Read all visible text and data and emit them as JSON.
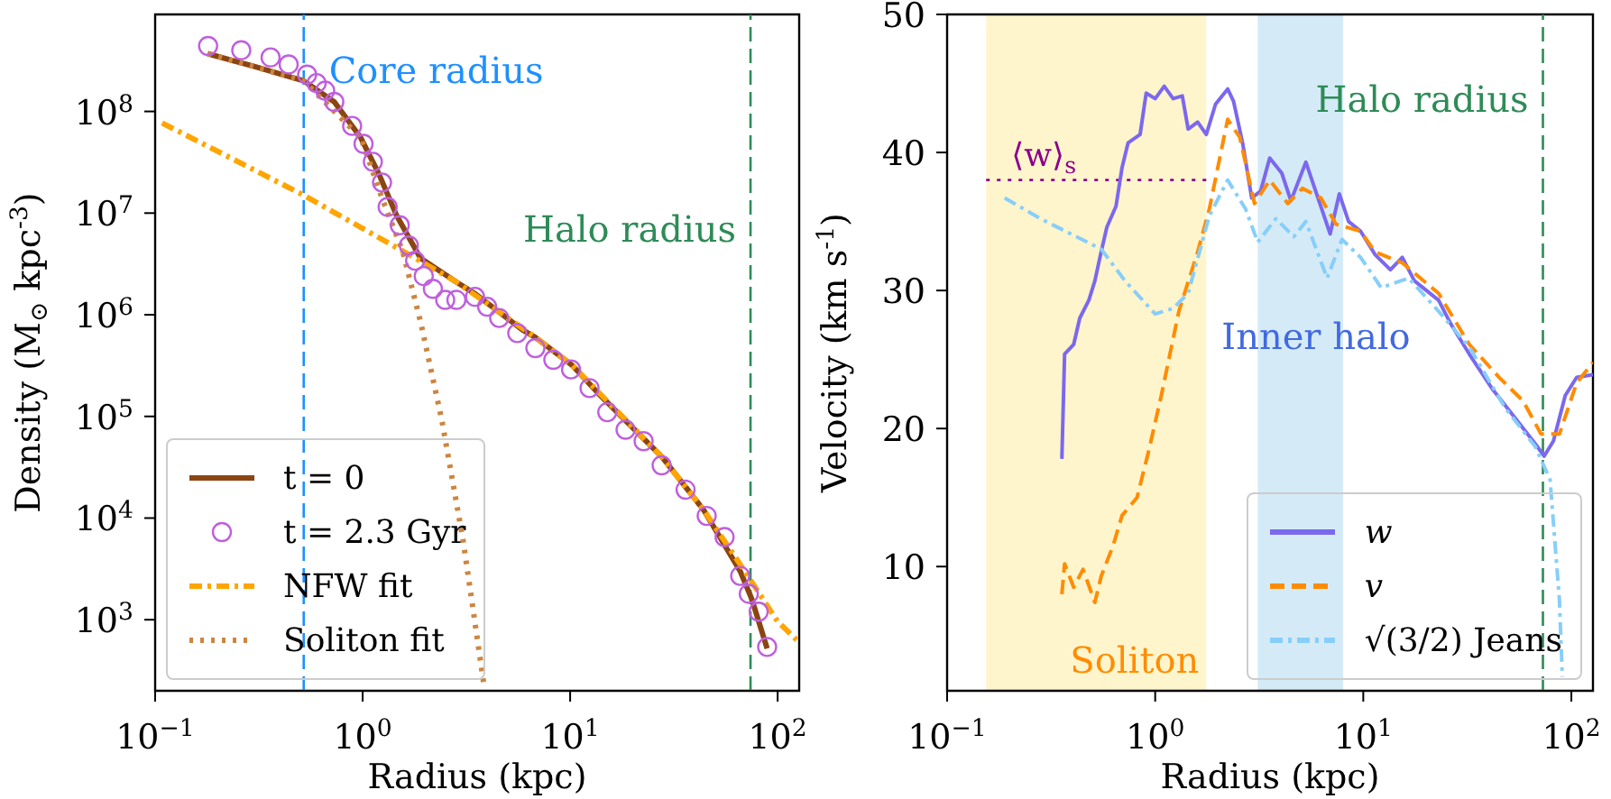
{
  "chart_data": [
    {
      "type": "line",
      "xlabel": "Radius (kpc)",
      "ylabel": "Density (M$_{⊙}$ kpc$^{-3}$)",
      "log": "xy",
      "xlim": [
        0.1,
        127
      ],
      "ylim": [
        200,
        900000000
      ],
      "xticks": [
        {
          "value": 0.1,
          "label": "10$^{−1}$"
        },
        {
          "value": 1,
          "label": "10$^{0}$"
        },
        {
          "value": 10,
          "label": "10$^{1}$"
        },
        {
          "value": 100,
          "label": "10$^{2}$"
        }
      ],
      "yticks": [
        {
          "value": 1000,
          "label": "10$^{3}$"
        },
        {
          "value": 10000,
          "label": "10$^{4}$"
        },
        {
          "value": 100000,
          "label": "10$^{5}$"
        },
        {
          "value": 1000000,
          "label": "10$^{6}$"
        },
        {
          "value": 10000000,
          "label": "10$^{7}$"
        },
        {
          "value": 100000000,
          "label": "10$^{8}$"
        }
      ],
      "legend": "bottom left",
      "series": [
        {
          "name": "t = 0",
          "color": "#8b4513",
          "line_style": "solid",
          "x": [
            0.179,
            0.295,
            0.52,
            0.73,
            0.98,
            1.2,
            1.46,
            1.9,
            2.83,
            3.5,
            5.9,
            6.8,
            10.2,
            14,
            27.7,
            44,
            66,
            75,
            89
          ],
          "values": [
            370000000,
            280000000,
            200000000,
            124000000,
            55000000,
            24000000,
            9400000,
            3600000,
            2100000,
            1600000,
            710000,
            600000,
            320000,
            160000,
            40000,
            12000,
            3000,
            1600,
            520
          ]
        },
        {
          "name": "t = 2.3 Gyr",
          "type": "scatter",
          "marker": "circle",
          "color": "#bf5fde",
          "x": [
            0.18,
            0.26,
            0.36,
            0.44,
            0.54,
            0.6,
            0.66,
            0.73,
            0.89,
            1.01,
            1.12,
            1.24,
            1.32,
            1.51,
            1.67,
            1.79,
            1.97,
            2.18,
            2.5,
            2.83,
            3.48,
            3.98,
            4.55,
            5.56,
            6.8,
            8.3,
            10.1,
            12.4,
            15.1,
            18.5,
            22.6,
            27.6,
            36,
            45.5,
            55.5,
            66,
            72.6,
            81,
            89
          ],
          "values": [
            440000000,
            400000000,
            340000000,
            290000000,
            230000000,
            190000000,
            160000000,
            124000000,
            72000000,
            48000000,
            32000000,
            20000000,
            11500000,
            7600000,
            4800000,
            3400000,
            2400000,
            1800000,
            1400000,
            1400000,
            1500000,
            1200000,
            930000,
            660000,
            470000,
            360000,
            290000,
            190000,
            110000,
            74000,
            57000,
            33000,
            19000,
            10500,
            6500,
            2700,
            1800,
            1200,
            540
          ]
        },
        {
          "name": "NFW fit",
          "color": "#ffa500",
          "line_style": "dashdot",
          "x": [
            0.108,
            0.52,
            1.54,
            2.83,
            6.8,
            10.2,
            27.7,
            44,
            66,
            100,
            127
          ],
          "values": [
            77000000,
            15000000,
            4300000,
            2100000,
            600000,
            320000,
            40000,
            12000,
            3500,
            960,
            600
          ]
        },
        {
          "name": "Soliton fit",
          "color": "#cd853f",
          "line_style": "dotted",
          "x": [
            0.18,
            0.52,
            0.98,
            1.24,
            1.56,
            1.91,
            2.41,
            3.05,
            3.84
          ],
          "values": [
            370000000,
            200000000,
            55000000,
            14000000,
            4200000,
            820000,
            91000,
            6000,
            230
          ]
        }
      ],
      "ref_lines": [
        {
          "axis": "x",
          "value": 0.52,
          "label": "Core radius",
          "color": "#1e90ff",
          "line_style": "dashed"
        },
        {
          "axis": "x",
          "value": 74,
          "label": "Halo radius",
          "color": "#2e8b57",
          "line_style": "dashed"
        }
      ]
    },
    {
      "type": "line",
      "xlabel": "Radius (kpc)",
      "ylabel": "Velocity (km s$^{-1}$)",
      "log": "x",
      "xlim": [
        0.1,
        127
      ],
      "ylim": [
        1,
        50
      ],
      "xticks": [
        {
          "value": 0.1,
          "label": "10$^{−1}$"
        },
        {
          "value": 1,
          "label": "10$^{0}$"
        },
        {
          "value": 10,
          "label": "10$^{1}$"
        },
        {
          "value": 100,
          "label": "10$^{2}$"
        }
      ],
      "yticks": [
        10,
        20,
        30,
        40,
        50
      ],
      "legend": "bottom right",
      "series": [
        {
          "name": "w",
          "color": "#7b68ee",
          "line_style": "solid",
          "x": [
            0.356,
            0.367,
            0.406,
            0.434,
            0.48,
            0.513,
            0.55,
            0.586,
            0.648,
            0.693,
            0.741,
            0.846,
            0.905,
            1.0,
            1.105,
            1.22,
            1.35,
            1.44,
            1.6,
            1.76,
            1.95,
            2.23,
            2.38,
            2.63,
            2.91,
            3.21,
            3.55,
            4.06,
            4.49,
            5.3,
            6.06,
            6.93,
            7.67,
            8.5,
            9.7,
            11.4,
            13.5,
            15.4,
            17.6,
            23,
            26.3,
            32.3,
            42,
            51.5,
            67,
            74,
            82,
            93.5,
            106,
            127
          ],
          "values": [
            17.8,
            25.4,
            26.1,
            28,
            29.3,
            30.7,
            32.8,
            34.6,
            36.1,
            38.9,
            40.7,
            41.3,
            44.3,
            43.9,
            44.8,
            43.9,
            44.1,
            41.7,
            42.2,
            41.3,
            43.5,
            44.6,
            43.7,
            40.7,
            36.7,
            37.2,
            39.6,
            38.5,
            36.5,
            39.3,
            36.7,
            34.1,
            37,
            35,
            34.3,
            32.6,
            31.5,
            32.4,
            30.7,
            29.3,
            27.6,
            25.4,
            22.8,
            21.1,
            18.9,
            18,
            19.1,
            22.4,
            23.7,
            23.9
          ]
        },
        {
          "name": "v",
          "color": "#ff8c00",
          "line_style": "dashed",
          "x": [
            0.356,
            0.367,
            0.406,
            0.45,
            0.513,
            0.55,
            0.627,
            0.693,
            0.818,
            0.935,
            1.07,
            1.3,
            1.6,
            1.82,
            2.23,
            2.55,
            3.0,
            3.55,
            4.34,
            5.1,
            6.26,
            7.4,
            9.7,
            11.4,
            15.4,
            23,
            32.3,
            45,
            58.6,
            71.5,
            87.6,
            106,
            127
          ],
          "values": [
            8,
            10.2,
            8.5,
            9.8,
            7.4,
            9.3,
            11.5,
            13.7,
            15,
            18.5,
            22.4,
            28.5,
            32.8,
            35.9,
            42.4,
            41.1,
            36.3,
            38,
            36.3,
            37.4,
            36.7,
            34.8,
            34.3,
            32.8,
            32,
            29.8,
            26.1,
            23.7,
            22,
            19.6,
            19.6,
            23.3,
            24.8
          ]
        },
        {
          "name": "√(3/2) Jeans",
          "color": "#87cefa",
          "line_style": "dashdot",
          "x": [
            0.189,
            0.281,
            0.393,
            0.55,
            0.716,
            1.0,
            1.22,
            1.44,
            1.82,
            2.23,
            2.72,
            3.11,
            3.8,
            4.64,
            5.3,
            6.7,
            7.9,
            9.7,
            12.2,
            16.5,
            23,
            32.3,
            48,
            67,
            79,
            87.6,
            90.5
          ],
          "values": [
            36.7,
            35.2,
            34.1,
            33,
            30.7,
            28.3,
            28.7,
            29.8,
            35.4,
            38,
            35.9,
            33.5,
            35.2,
            33.9,
            35,
            30.9,
            33.7,
            32.4,
            30.2,
            30.9,
            28.5,
            25.9,
            21.5,
            18.7,
            16.3,
            7.6,
            2
          ]
        }
      ],
      "ref_lines": [
        {
          "axis": "x",
          "value": 73,
          "label": "Halo radius",
          "color": "#2e8b57",
          "line_style": "dashed"
        },
        {
          "axis": "y",
          "value": 38,
          "label": "⟨w⟩$_{s}$",
          "color": "#8b008b",
          "line_style": "dotted"
        }
      ],
      "bands": [
        {
          "axis": "x",
          "from": 0.154,
          "to": 1.76,
          "label": "Soliton",
          "color": "#fff5cc"
        },
        {
          "axis": "x",
          "from": 3.11,
          "to": 8.0,
          "label": "Inner halo",
          "color": "#d4ebf7"
        }
      ]
    }
  ]
}
